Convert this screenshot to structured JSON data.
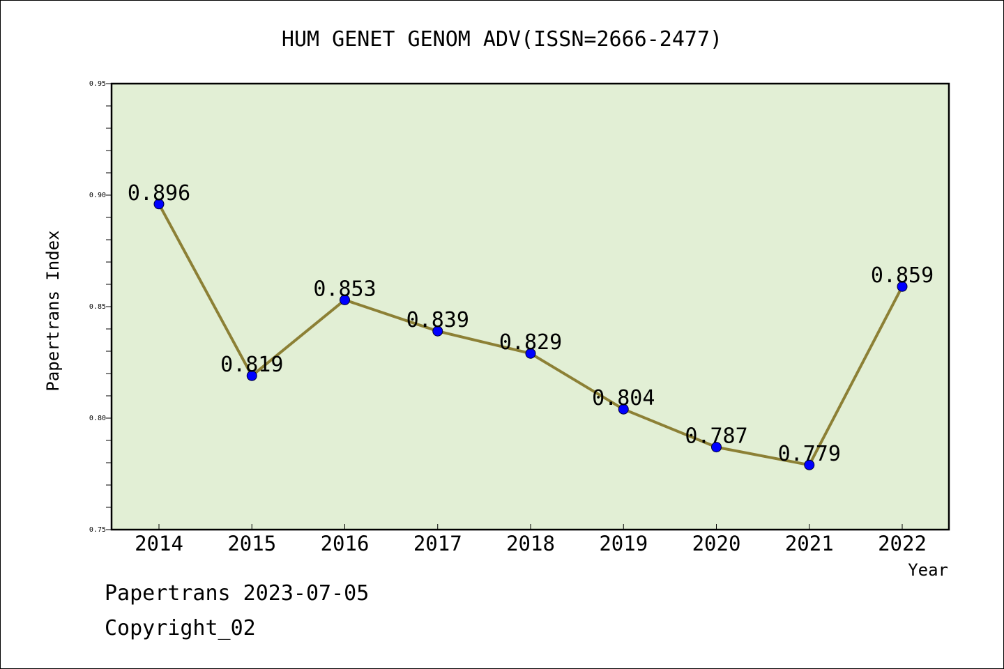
{
  "chart_data": {
    "type": "line",
    "title": "HUM GENET GENOM ADV(ISSN=2666-2477)",
    "xlabel": "Year",
    "ylabel": "Papertrans Index",
    "categories": [
      "2014",
      "2015",
      "2016",
      "2017",
      "2018",
      "2019",
      "2020",
      "2021",
      "2022"
    ],
    "values": [
      0.896,
      0.819,
      0.853,
      0.839,
      0.829,
      0.804,
      0.787,
      0.779,
      0.859
    ],
    "data_labels": [
      "0.896",
      "0.819",
      "0.853",
      "0.839",
      "0.829",
      "0.804",
      "0.787",
      "0.779",
      "0.859"
    ],
    "ylim": [
      0.75,
      0.95
    ],
    "yticks": [
      "0.75",
      "0.80",
      "0.85",
      "0.90",
      "0.95"
    ],
    "grid": false,
    "colors": {
      "plot_background": "#e2efd5",
      "line": "#8c8035",
      "marker": "#0000ff"
    }
  },
  "footer": {
    "source": "Papertrans 2023-07-05",
    "copyright": "Copyright_02"
  }
}
